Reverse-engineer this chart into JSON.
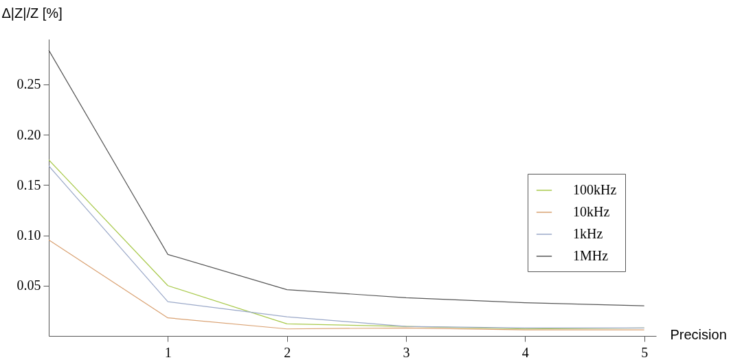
{
  "chart_data": {
    "type": "line",
    "xlabel": "Precision",
    "ylabel": "Δ|Z|/Z [%]",
    "x": [
      0,
      1,
      2,
      3,
      4,
      5
    ],
    "series": [
      {
        "name": "100kHz",
        "color": "#a8c94a",
        "values": [
          0.175,
          0.05,
          0.012,
          0.0095,
          0.007,
          0.008
        ]
      },
      {
        "name": "10kHz",
        "color": "#d9a070",
        "values": [
          0.0955,
          0.018,
          0.007,
          0.008,
          0.006,
          0.006
        ]
      },
      {
        "name": "1kHz",
        "color": "#9aa8c8",
        "values": [
          0.169,
          0.034,
          0.019,
          0.0095,
          0.008,
          0.008
        ]
      },
      {
        "name": "1MHz",
        "color": "#555555",
        "values": [
          0.284,
          0.081,
          0.046,
          0.038,
          0.033,
          0.03
        ]
      }
    ],
    "xlim": [
      0,
      5.1
    ],
    "xticks": [
      1,
      2,
      3,
      4,
      5
    ],
    "ylim": [
      0,
      0.295
    ],
    "yticks": [
      0.05,
      {
        "value": 0.1,
        "label": "0.10"
      },
      0.15,
      {
        "value": 0.2,
        "label": "0.20"
      },
      0.25
    ],
    "grid": false,
    "legend": "right",
    "marker": "none",
    "line_style": "solid"
  }
}
